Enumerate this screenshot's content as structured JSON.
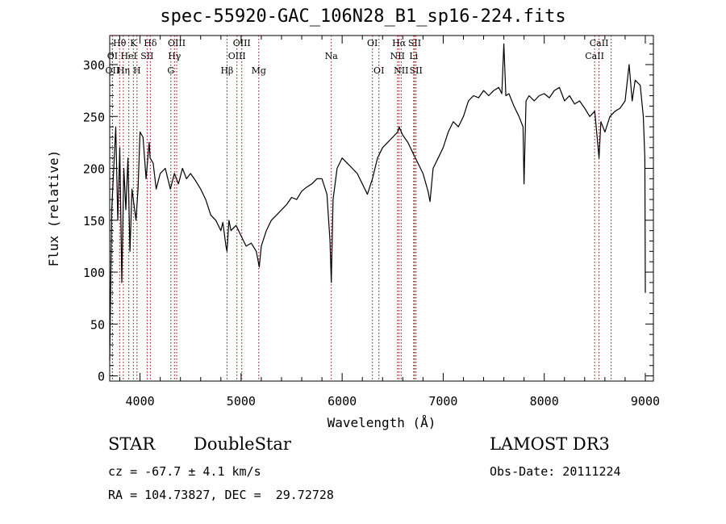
{
  "title": "spec-55920-GAC_106N28_B1_sp16-224.fits",
  "info": {
    "object_class": "STAR",
    "subclass": "DoubleStar",
    "survey": "LAMOST DR3",
    "cz": "cz = -67.7 ± 4.1 km/s",
    "obs_date": "Obs-Date: 20111224",
    "coords": "RA = 104.73827, DEC =  29.72728"
  },
  "chart_data": {
    "type": "line",
    "title": "spec-55920-GAC_106N28_B1_sp16-224.fits",
    "xlabel": "Wavelength (Å)",
    "ylabel": "Flux (relative)",
    "xlim": [
      3700,
      9080
    ],
    "ylim": [
      -5,
      328
    ],
    "xticks": [
      4000,
      5000,
      6000,
      7000,
      8000,
      9000
    ],
    "yticks": [
      0,
      50,
      100,
      150,
      200,
      250,
      300
    ],
    "grid": false,
    "line_color": "#000000",
    "marker_color": "#8b0000",
    "series": [
      {
        "x": [
          3700,
          3720,
          3740,
          3760,
          3780,
          3800,
          3820,
          3840,
          3860,
          3880,
          3900,
          3920,
          3940,
          3960,
          3980,
          4000,
          4030,
          4060,
          4090,
          4100,
          4130,
          4160,
          4200,
          4250,
          4300,
          4340,
          4380,
          4420,
          4460,
          4500,
          4550,
          4600,
          4650,
          4700,
          4750,
          4800,
          4820,
          4850,
          4861,
          4880,
          4900,
          4950,
          5000,
          5050,
          5100,
          5150,
          5180,
          5200,
          5250,
          5300,
          5350,
          5400,
          5450,
          5500,
          5550,
          5600,
          5650,
          5700,
          5750,
          5800,
          5850,
          5880,
          5893,
          5910,
          5950,
          6000,
          6050,
          6100,
          6150,
          6200,
          6250,
          6300,
          6350,
          6400,
          6450,
          6500,
          6550,
          6563,
          6600,
          6650,
          6700,
          6750,
          6800,
          6850,
          6870,
          6900,
          6950,
          7000,
          7050,
          7100,
          7150,
          7200,
          7250,
          7300,
          7350,
          7400,
          7450,
          7500,
          7550,
          7580,
          7600,
          7620,
          7650,
          7700,
          7750,
          7790,
          7800,
          7820,
          7850,
          7900,
          7950,
          8000,
          8050,
          8100,
          8150,
          8200,
          8250,
          8300,
          8350,
          8400,
          8450,
          8500,
          8542,
          8560,
          8600,
          8650,
          8700,
          8750,
          8800,
          8840,
          8870,
          8900,
          8950,
          8980,
          8995,
          9000
        ],
        "y": [
          15,
          160,
          200,
          240,
          150,
          220,
          90,
          200,
          160,
          210,
          120,
          180,
          165,
          150,
          180,
          235,
          230,
          190,
          225,
          210,
          205,
          180,
          195,
          200,
          180,
          195,
          185,
          200,
          190,
          195,
          188,
          180,
          170,
          155,
          150,
          140,
          148,
          125,
          120,
          150,
          140,
          145,
          135,
          125,
          128,
          120,
          105,
          125,
          140,
          150,
          155,
          160,
          165,
          172,
          170,
          178,
          182,
          185,
          190,
          190,
          175,
          130,
          90,
          170,
          200,
          210,
          205,
          200,
          195,
          185,
          175,
          190,
          210,
          220,
          225,
          230,
          235,
          240,
          232,
          225,
          215,
          205,
          195,
          178,
          168,
          200,
          210,
          220,
          235,
          245,
          240,
          250,
          265,
          270,
          268,
          275,
          270,
          275,
          278,
          272,
          320,
          270,
          272,
          260,
          250,
          240,
          185,
          265,
          270,
          265,
          270,
          272,
          268,
          275,
          278,
          265,
          270,
          262,
          265,
          258,
          250,
          255,
          210,
          245,
          235,
          250,
          255,
          258,
          265,
          300,
          265,
          285,
          280,
          250,
          210,
          80
        ]
      }
    ],
    "spectral_lines": [
      {
        "label": "Hθ",
        "x": 3798
      },
      {
        "label": "K",
        "x": 3934
      },
      {
        "label": "Hδ",
        "x": 4102
      },
      {
        "label": "OIII",
        "x": 4363
      },
      {
        "label": "OIII",
        "x": 5007
      },
      {
        "label": "OI",
        "x": 6300
      },
      {
        "label": "Hα",
        "x": 6563
      },
      {
        "label": "SII",
        "x": 6717
      },
      {
        "label": "CaII",
        "x": 8542
      },
      {
        "label": "OI",
        "x": 3727
      },
      {
        "label": "HeI",
        "x": 3889
      },
      {
        "label": "SII",
        "x": 4070
      },
      {
        "label": "Hγ",
        "x": 4341
      },
      {
        "label": "OIII",
        "x": 4959
      },
      {
        "label": "Na",
        "x": 5893
      },
      {
        "label": "NII",
        "x": 6548
      },
      {
        "label": "Li",
        "x": 6708
      },
      {
        "label": "CaII",
        "x": 8498
      },
      {
        "label": "OII",
        "x": 3727
      },
      {
        "label": "Hη",
        "x": 3835
      },
      {
        "label": "H",
        "x": 3970
      },
      {
        "label": "G",
        "x": 4305
      },
      {
        "label": "Hβ",
        "x": 4861
      },
      {
        "label": "Mg",
        "x": 5175
      },
      {
        "label": "OI",
        "x": 6364
      },
      {
        "label": "NII",
        "x": 6584
      },
      {
        "label": "SII",
        "x": 6731
      },
      {
        "label": "CaII",
        "x": 8662
      }
    ]
  }
}
